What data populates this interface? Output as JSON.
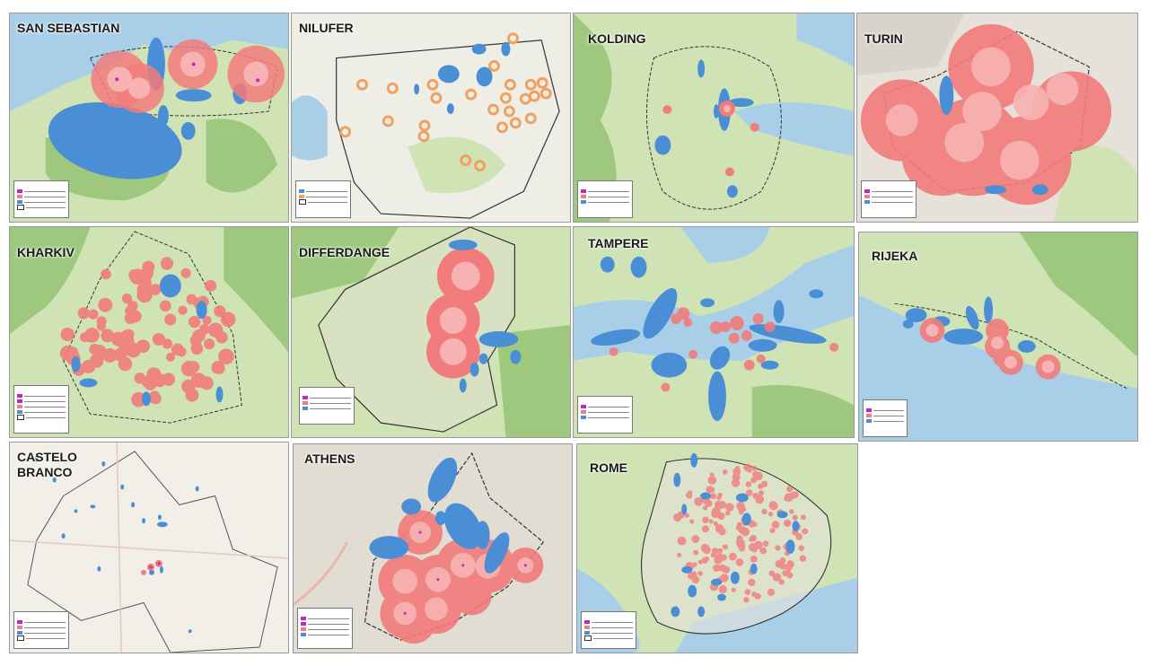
{
  "panels": [
    {
      "id": "p1",
      "name": "SAN SEBASTIAN"
    },
    {
      "id": "p2",
      "name": "NILUFER"
    },
    {
      "id": "p3",
      "name": "KOLDING"
    },
    {
      "id": "p4",
      "name": "TURIN"
    },
    {
      "id": "p5",
      "name": "KHARKIV"
    },
    {
      "id": "p6",
      "name": "DIFFERDANGE"
    },
    {
      "id": "p7",
      "name": "TAMPERE"
    },
    {
      "id": "p8",
      "name": "RIJEKA"
    },
    {
      "id": "p9",
      "name": "CASTELO\nBRANCO"
    },
    {
      "id": "p10",
      "name": "ATHENS"
    },
    {
      "id": "p11",
      "name": "ROME"
    }
  ],
  "colors": {
    "buffer_red": "#f27b7b",
    "buffer_orange": "#f0a060",
    "ellipse_blue": "#4a8fd6",
    "point_magenta": "#c026c0",
    "land_green": "#cfe3b5",
    "forest_green": "#9fc87f",
    "water_blue": "#a9cfe8",
    "urban_gray": "#e6e2da",
    "boundary": "#333333"
  }
}
